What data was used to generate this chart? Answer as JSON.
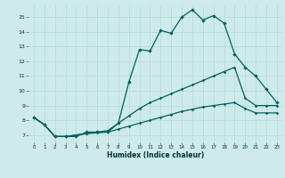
{
  "xlabel": "Humidex (Indice chaleur)",
  "bg_color": "#ceeaea",
  "grid_color": "#b8d8d8",
  "line_color": "#006060",
  "xlim": [
    -0.5,
    23.5
  ],
  "ylim": [
    6.5,
    15.8
  ],
  "x_ticks": [
    0,
    1,
    2,
    3,
    4,
    5,
    6,
    7,
    8,
    9,
    10,
    11,
    12,
    13,
    14,
    15,
    16,
    17,
    18,
    19,
    20,
    21,
    22,
    23
  ],
  "y_ticks": [
    7,
    8,
    9,
    10,
    11,
    12,
    13,
    14,
    15
  ],
  "line1_x": [
    0,
    1,
    2,
    3,
    4,
    5,
    6,
    7,
    8,
    9,
    10,
    11,
    12,
    13,
    14,
    15,
    16,
    17,
    18,
    19,
    20,
    21,
    22,
    23
  ],
  "line1_y": [
    8.2,
    7.7,
    6.9,
    6.9,
    6.9,
    7.2,
    7.2,
    7.2,
    7.8,
    10.6,
    12.8,
    12.7,
    14.1,
    13.9,
    15.0,
    15.5,
    14.8,
    15.1,
    14.6,
    12.5,
    11.6,
    11.0,
    10.1,
    9.2
  ],
  "line2_x": [
    0,
    1,
    2,
    3,
    4,
    5,
    6,
    7,
    8,
    9,
    10,
    11,
    12,
    13,
    14,
    15,
    16,
    17,
    18,
    19,
    20,
    21,
    22,
    23
  ],
  "line2_y": [
    8.2,
    7.7,
    6.9,
    6.9,
    7.0,
    7.1,
    7.2,
    7.3,
    7.8,
    8.3,
    8.8,
    9.2,
    9.5,
    9.8,
    10.1,
    10.4,
    10.7,
    11.0,
    11.3,
    11.6,
    9.5,
    9.0,
    9.0,
    9.0
  ],
  "line3_x": [
    0,
    1,
    2,
    3,
    4,
    5,
    6,
    7,
    8,
    9,
    10,
    11,
    12,
    13,
    14,
    15,
    16,
    17,
    18,
    19,
    20,
    21,
    22,
    23
  ],
  "line3_y": [
    8.2,
    7.7,
    6.9,
    6.9,
    7.0,
    7.1,
    7.15,
    7.2,
    7.4,
    7.6,
    7.8,
    8.0,
    8.2,
    8.4,
    8.6,
    8.75,
    8.9,
    9.0,
    9.1,
    9.2,
    8.8,
    8.5,
    8.5,
    8.5
  ]
}
